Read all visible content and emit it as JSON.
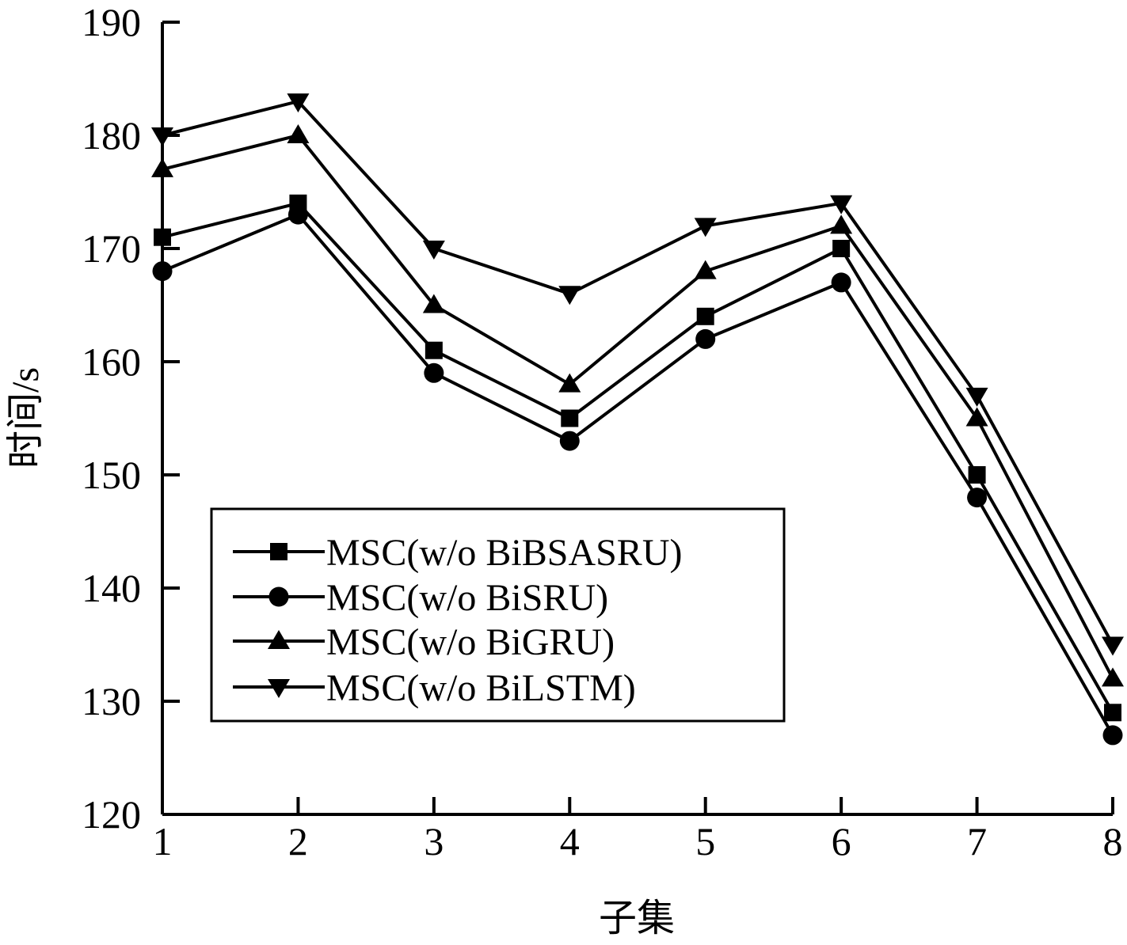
{
  "chart_data": {
    "type": "line",
    "title": "",
    "xlabel": "子集",
    "ylabel": "时间/s",
    "x": [
      1,
      2,
      3,
      4,
      5,
      6,
      7,
      8
    ],
    "xticks": [
      "1",
      "2",
      "3",
      "4",
      "5",
      "6",
      "7",
      "8"
    ],
    "yticks": [
      "120",
      "130",
      "140",
      "150",
      "160",
      "170",
      "180",
      "190"
    ],
    "xlim": [
      1,
      8
    ],
    "ylim": [
      120,
      190
    ],
    "grid": false,
    "legend_position": "lower-left",
    "series": [
      {
        "name": "MSC(w/o BiBSASRU)",
        "marker": "square",
        "color": "#000000",
        "values": [
          171,
          174,
          161,
          155,
          164,
          170,
          150,
          129
        ]
      },
      {
        "name": "MSC(w/o BiSRU)",
        "marker": "circle",
        "color": "#000000",
        "values": [
          168,
          173,
          159,
          153,
          162,
          167,
          148,
          127
        ]
      },
      {
        "name": "MSC(w/o BiGRU)",
        "marker": "triangle-up",
        "color": "#000000",
        "values": [
          177,
          180,
          165,
          158,
          168,
          172,
          155,
          132
        ]
      },
      {
        "name": "MSC(w/o BiLSTM)",
        "marker": "triangle-down",
        "color": "#000000",
        "values": [
          180,
          183,
          170,
          166,
          172,
          174,
          157,
          135
        ]
      }
    ]
  }
}
